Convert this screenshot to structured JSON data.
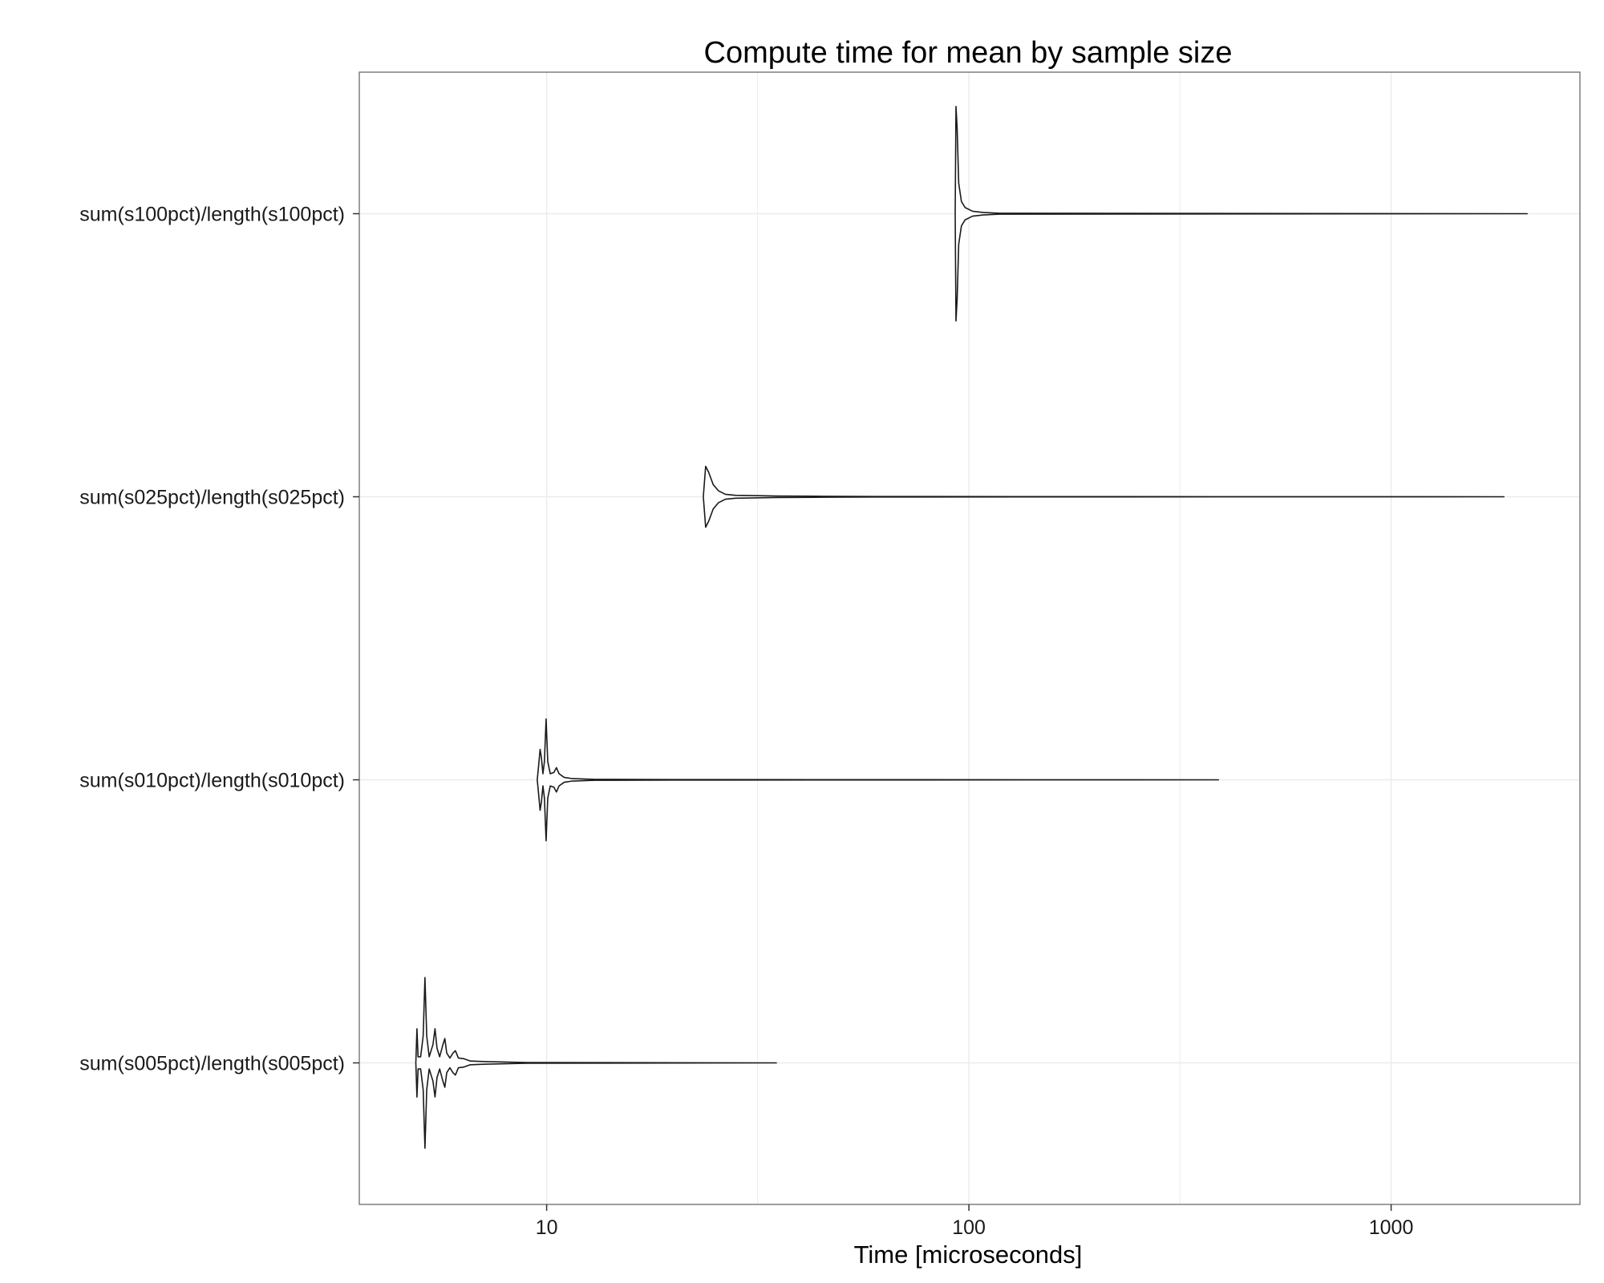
{
  "chart_data": {
    "type": "violin",
    "orientation": "horizontal",
    "title": "Compute time for mean by sample size",
    "xlabel": "Time [microseconds]",
    "ylabel": "",
    "x_scale": "log10",
    "xlim": [
      3.6,
      2800
    ],
    "x_ticks": [
      10,
      100,
      1000
    ],
    "x_tick_labels": [
      "10",
      "100",
      "1000"
    ],
    "x_minor_gridlines": [
      31.6,
      316
    ],
    "grid": true,
    "legend": "none",
    "colors": {
      "outline": "#1a1a1a",
      "fill": "#ffffff",
      "grid": "#ebebeb",
      "panel_border": "#7f7f7f"
    },
    "categories": [
      "sum(s005pct)/length(s005pct)",
      "sum(s010pct)/length(s010pct)",
      "sum(s025pct)/length(s025pct)",
      "sum(s100pct)/length(s100pct)"
    ],
    "series": [
      {
        "category": "sum(s005pct)/length(s005pct)",
        "min": 4.9,
        "max": 35,
        "density": [
          [
            4.9,
            0.0
          ],
          [
            4.93,
            0.28
          ],
          [
            4.96,
            0.05
          ],
          [
            5.03,
            0.05
          ],
          [
            5.1,
            0.22
          ],
          [
            5.15,
            0.7
          ],
          [
            5.2,
            0.22
          ],
          [
            5.27,
            0.05
          ],
          [
            5.38,
            0.15
          ],
          [
            5.44,
            0.28
          ],
          [
            5.5,
            0.12
          ],
          [
            5.58,
            0.05
          ],
          [
            5.68,
            0.15
          ],
          [
            5.74,
            0.2
          ],
          [
            5.8,
            0.08
          ],
          [
            5.9,
            0.04
          ],
          [
            6.0,
            0.08
          ],
          [
            6.08,
            0.1
          ],
          [
            6.18,
            0.04
          ],
          [
            6.35,
            0.035
          ],
          [
            6.6,
            0.015
          ],
          [
            7.2,
            0.01
          ],
          [
            9,
            0.003
          ],
          [
            35,
            0.0
          ]
        ]
      },
      {
        "category": "sum(s010pct)/length(s010pct)",
        "min": 9.5,
        "max": 390,
        "density": [
          [
            9.5,
            0.0
          ],
          [
            9.55,
            0.08
          ],
          [
            9.65,
            0.25
          ],
          [
            9.72,
            0.18
          ],
          [
            9.8,
            0.05
          ],
          [
            9.88,
            0.15
          ],
          [
            9.97,
            0.5
          ],
          [
            10.06,
            0.15
          ],
          [
            10.2,
            0.05
          ],
          [
            10.4,
            0.06
          ],
          [
            10.55,
            0.1
          ],
          [
            10.7,
            0.05
          ],
          [
            11.0,
            0.02
          ],
          [
            11.5,
            0.01
          ],
          [
            13,
            0.004
          ],
          [
            20,
            0.002
          ],
          [
            390,
            0.0
          ]
        ]
      },
      {
        "category": "sum(s025pct)/length(s025pct)",
        "min": 23.5,
        "max": 1850,
        "density": [
          [
            23.5,
            0.0
          ],
          [
            23.8,
            0.25
          ],
          [
            24.2,
            0.2
          ],
          [
            24.8,
            0.1
          ],
          [
            25.5,
            0.05
          ],
          [
            26.5,
            0.02
          ],
          [
            28,
            0.012
          ],
          [
            35,
            0.006
          ],
          [
            45,
            0.004
          ],
          [
            60,
            0.002
          ],
          [
            1850,
            0.0
          ]
        ]
      },
      {
        "category": "sum(s100pct)/length(s100pct)",
        "min": 92.8,
        "max": 2100,
        "density": [
          [
            92.8,
            0.0
          ],
          [
            93.2,
            0.88
          ],
          [
            93.8,
            0.7
          ],
          [
            94.6,
            0.25
          ],
          [
            96,
            0.1
          ],
          [
            98,
            0.05
          ],
          [
            102,
            0.02
          ],
          [
            108,
            0.01
          ],
          [
            118,
            0.004
          ],
          [
            2100,
            0.0
          ]
        ]
      }
    ]
  }
}
